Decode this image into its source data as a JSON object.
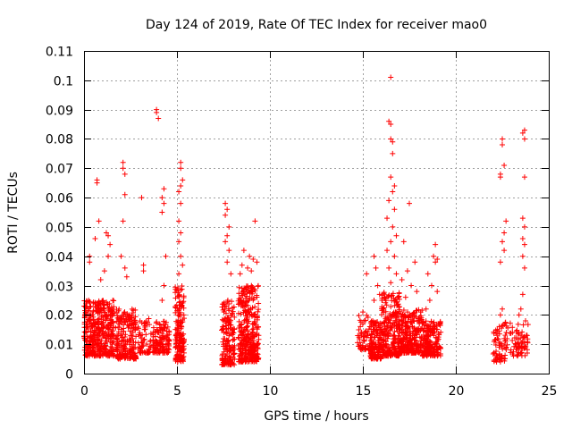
{
  "chart_data": {
    "type": "scatter",
    "title": "Day 124 of 2019, Rate Of TEC Index for receiver mao0",
    "xlabel": "GPS time / hours",
    "ylabel": "ROTI / TECUs",
    "xlim": [
      0,
      25
    ],
    "ylim": [
      0,
      0.11
    ],
    "x_ticks": [
      0,
      5,
      10,
      15,
      20,
      25
    ],
    "x_tick_labels": [
      "0",
      "5",
      "10",
      "15",
      "20",
      "25"
    ],
    "y_ticks": [
      0,
      0.01,
      0.02,
      0.03,
      0.04,
      0.05,
      0.06,
      0.07,
      0.08,
      0.09,
      0.1,
      0.11
    ],
    "y_tick_labels": [
      "0",
      "0.01",
      "0.02",
      "0.03",
      "0.04",
      "0.05",
      "0.06",
      "0.07",
      "0.08",
      "0.09",
      "0.1",
      "0.11"
    ],
    "grid": true,
    "marker": "plus",
    "series": [
      {
        "name": "ROTI",
        "color": "#ff0000",
        "clusters": [
          {
            "x_start": 0.0,
            "x_end": 1.6,
            "count": 420,
            "y_min": 0.006,
            "y_max": 0.025,
            "spikes": [
              [
                0.3,
                0.04
              ],
              [
                0.3,
                0.038
              ],
              [
                0.6,
                0.046
              ],
              [
                0.7,
                0.066
              ],
              [
                0.7,
                0.065
              ],
              [
                0.8,
                0.052
              ],
              [
                1.2,
                0.048
              ],
              [
                1.3,
                0.047
              ],
              [
                1.4,
                0.044
              ],
              [
                1.3,
                0.04
              ],
              [
                1.1,
                0.035
              ],
              [
                0.9,
                0.032
              ]
            ]
          },
          {
            "x_start": 1.7,
            "x_end": 2.8,
            "count": 220,
            "y_min": 0.005,
            "y_max": 0.022,
            "spikes": [
              [
                2.1,
                0.072
              ],
              [
                2.1,
                0.07
              ],
              [
                2.2,
                0.068
              ],
              [
                2.2,
                0.061
              ],
              [
                2.1,
                0.052
              ],
              [
                2.0,
                0.04
              ],
              [
                2.2,
                0.036
              ],
              [
                2.3,
                0.033
              ]
            ]
          },
          {
            "x_start": 2.9,
            "x_end": 3.6,
            "count": 60,
            "y_min": 0.007,
            "y_max": 0.02,
            "spikes": [
              [
                3.1,
                0.06
              ],
              [
                3.2,
                0.037
              ],
              [
                3.2,
                0.035
              ]
            ]
          },
          {
            "x_start": 3.7,
            "x_end": 4.6,
            "count": 130,
            "y_min": 0.007,
            "y_max": 0.018,
            "spikes": [
              [
                3.9,
                0.09
              ],
              [
                3.9,
                0.089
              ],
              [
                4.0,
                0.087
              ],
              [
                4.3,
                0.063
              ],
              [
                4.2,
                0.06
              ],
              [
                4.3,
                0.058
              ],
              [
                4.2,
                0.055
              ],
              [
                4.4,
                0.04
              ],
              [
                4.3,
                0.03
              ],
              [
                4.2,
                0.025
              ]
            ]
          },
          {
            "x_start": 4.9,
            "x_end": 5.4,
            "count": 170,
            "y_min": 0.004,
            "y_max": 0.03,
            "spikes": [
              [
                5.2,
                0.072
              ],
              [
                5.2,
                0.07
              ],
              [
                5.3,
                0.066
              ],
              [
                5.2,
                0.064
              ],
              [
                5.1,
                0.062
              ],
              [
                5.2,
                0.058
              ],
              [
                5.1,
                0.052
              ],
              [
                5.2,
                0.048
              ],
              [
                5.1,
                0.045
              ],
              [
                5.2,
                0.04
              ],
              [
                5.3,
                0.037
              ],
              [
                5.1,
                0.034
              ]
            ]
          },
          {
            "x_start": 7.4,
            "x_end": 8.1,
            "count": 160,
            "y_min": 0.003,
            "y_max": 0.025,
            "spikes": [
              [
                7.6,
                0.058
              ],
              [
                7.7,
                0.056
              ],
              [
                7.6,
                0.054
              ],
              [
                7.8,
                0.05
              ],
              [
                7.7,
                0.047
              ],
              [
                7.6,
                0.045
              ],
              [
                7.8,
                0.042
              ],
              [
                7.7,
                0.038
              ],
              [
                7.9,
                0.034
              ]
            ]
          },
          {
            "x_start": 8.3,
            "x_end": 9.4,
            "count": 330,
            "y_min": 0.004,
            "y_max": 0.03,
            "spikes": [
              [
                9.2,
                0.052
              ],
              [
                8.6,
                0.042
              ],
              [
                8.9,
                0.04
              ],
              [
                9.1,
                0.039
              ],
              [
                9.3,
                0.038
              ],
              [
                8.5,
                0.037
              ],
              [
                8.8,
                0.036
              ],
              [
                9.0,
                0.035
              ],
              [
                8.4,
                0.034
              ]
            ]
          },
          {
            "x_start": 14.7,
            "x_end": 15.4,
            "count": 55,
            "y_min": 0.008,
            "y_max": 0.02,
            "spikes": [
              [
                15.2,
                0.034
              ],
              [
                15.0,
                0.021
              ]
            ]
          },
          {
            "x_start": 15.4,
            "x_end": 16.0,
            "count": 150,
            "y_min": 0.005,
            "y_max": 0.018,
            "spikes": [
              [
                15.6,
                0.04
              ],
              [
                15.7,
                0.036
              ],
              [
                15.8,
                0.03
              ],
              [
                15.9,
                0.027
              ],
              [
                15.6,
                0.025
              ]
            ]
          },
          {
            "x_start": 16.0,
            "x_end": 17.0,
            "count": 260,
            "y_min": 0.006,
            "y_max": 0.028,
            "spikes": [
              [
                16.5,
                0.101
              ],
              [
                16.4,
                0.086
              ],
              [
                16.5,
                0.085
              ],
              [
                16.5,
                0.08
              ],
              [
                16.6,
                0.079
              ],
              [
                16.6,
                0.075
              ],
              [
                16.5,
                0.067
              ],
              [
                16.7,
                0.064
              ],
              [
                16.6,
                0.062
              ],
              [
                16.4,
                0.059
              ],
              [
                16.7,
                0.056
              ],
              [
                16.3,
                0.053
              ],
              [
                16.6,
                0.05
              ],
              [
                16.8,
                0.047
              ],
              [
                16.5,
                0.045
              ],
              [
                16.3,
                0.042
              ],
              [
                16.7,
                0.04
              ],
              [
                16.4,
                0.036
              ],
              [
                16.8,
                0.034
              ],
              [
                16.5,
                0.031
              ]
            ]
          },
          {
            "x_start": 17.0,
            "x_end": 18.2,
            "count": 260,
            "y_min": 0.007,
            "y_max": 0.022,
            "spikes": [
              [
                17.5,
                0.058
              ],
              [
                17.2,
                0.045
              ],
              [
                17.8,
                0.038
              ],
              [
                17.4,
                0.035
              ],
              [
                17.1,
                0.032
              ],
              [
                17.6,
                0.03
              ],
              [
                17.9,
                0.028
              ],
              [
                17.3,
                0.026
              ]
            ]
          },
          {
            "x_start": 18.2,
            "x_end": 19.2,
            "count": 200,
            "y_min": 0.006,
            "y_max": 0.018,
            "spikes": [
              [
                18.9,
                0.044
              ],
              [
                18.8,
                0.04
              ],
              [
                19.0,
                0.039
              ],
              [
                18.9,
                0.038
              ],
              [
                18.5,
                0.034
              ],
              [
                18.7,
                0.03
              ],
              [
                19.0,
                0.028
              ],
              [
                18.6,
                0.025
              ],
              [
                18.4,
                0.022
              ]
            ]
          },
          {
            "x_start": 22.0,
            "x_end": 22.8,
            "count": 70,
            "y_min": 0.004,
            "y_max": 0.018,
            "spikes": [
              [
                22.5,
                0.08
              ],
              [
                22.5,
                0.078
              ],
              [
                22.6,
                0.071
              ],
              [
                22.4,
                0.068
              ],
              [
                22.4,
                0.067
              ],
              [
                22.7,
                0.052
              ],
              [
                22.6,
                0.048
              ],
              [
                22.5,
                0.045
              ],
              [
                22.6,
                0.042
              ],
              [
                22.4,
                0.038
              ],
              [
                22.5,
                0.022
              ],
              [
                22.4,
                0.02
              ]
            ]
          },
          {
            "x_start": 22.9,
            "x_end": 23.9,
            "count": 70,
            "y_min": 0.006,
            "y_max": 0.018,
            "spikes": [
              [
                23.7,
                0.083
              ],
              [
                23.6,
                0.082
              ],
              [
                23.7,
                0.08
              ],
              [
                23.7,
                0.067
              ],
              [
                23.6,
                0.053
              ],
              [
                23.7,
                0.05
              ],
              [
                23.6,
                0.046
              ],
              [
                23.7,
                0.044
              ],
              [
                23.6,
                0.04
              ],
              [
                23.7,
                0.036
              ],
              [
                23.6,
                0.027
              ],
              [
                23.5,
                0.022
              ],
              [
                23.4,
                0.02
              ]
            ]
          }
        ]
      }
    ]
  }
}
